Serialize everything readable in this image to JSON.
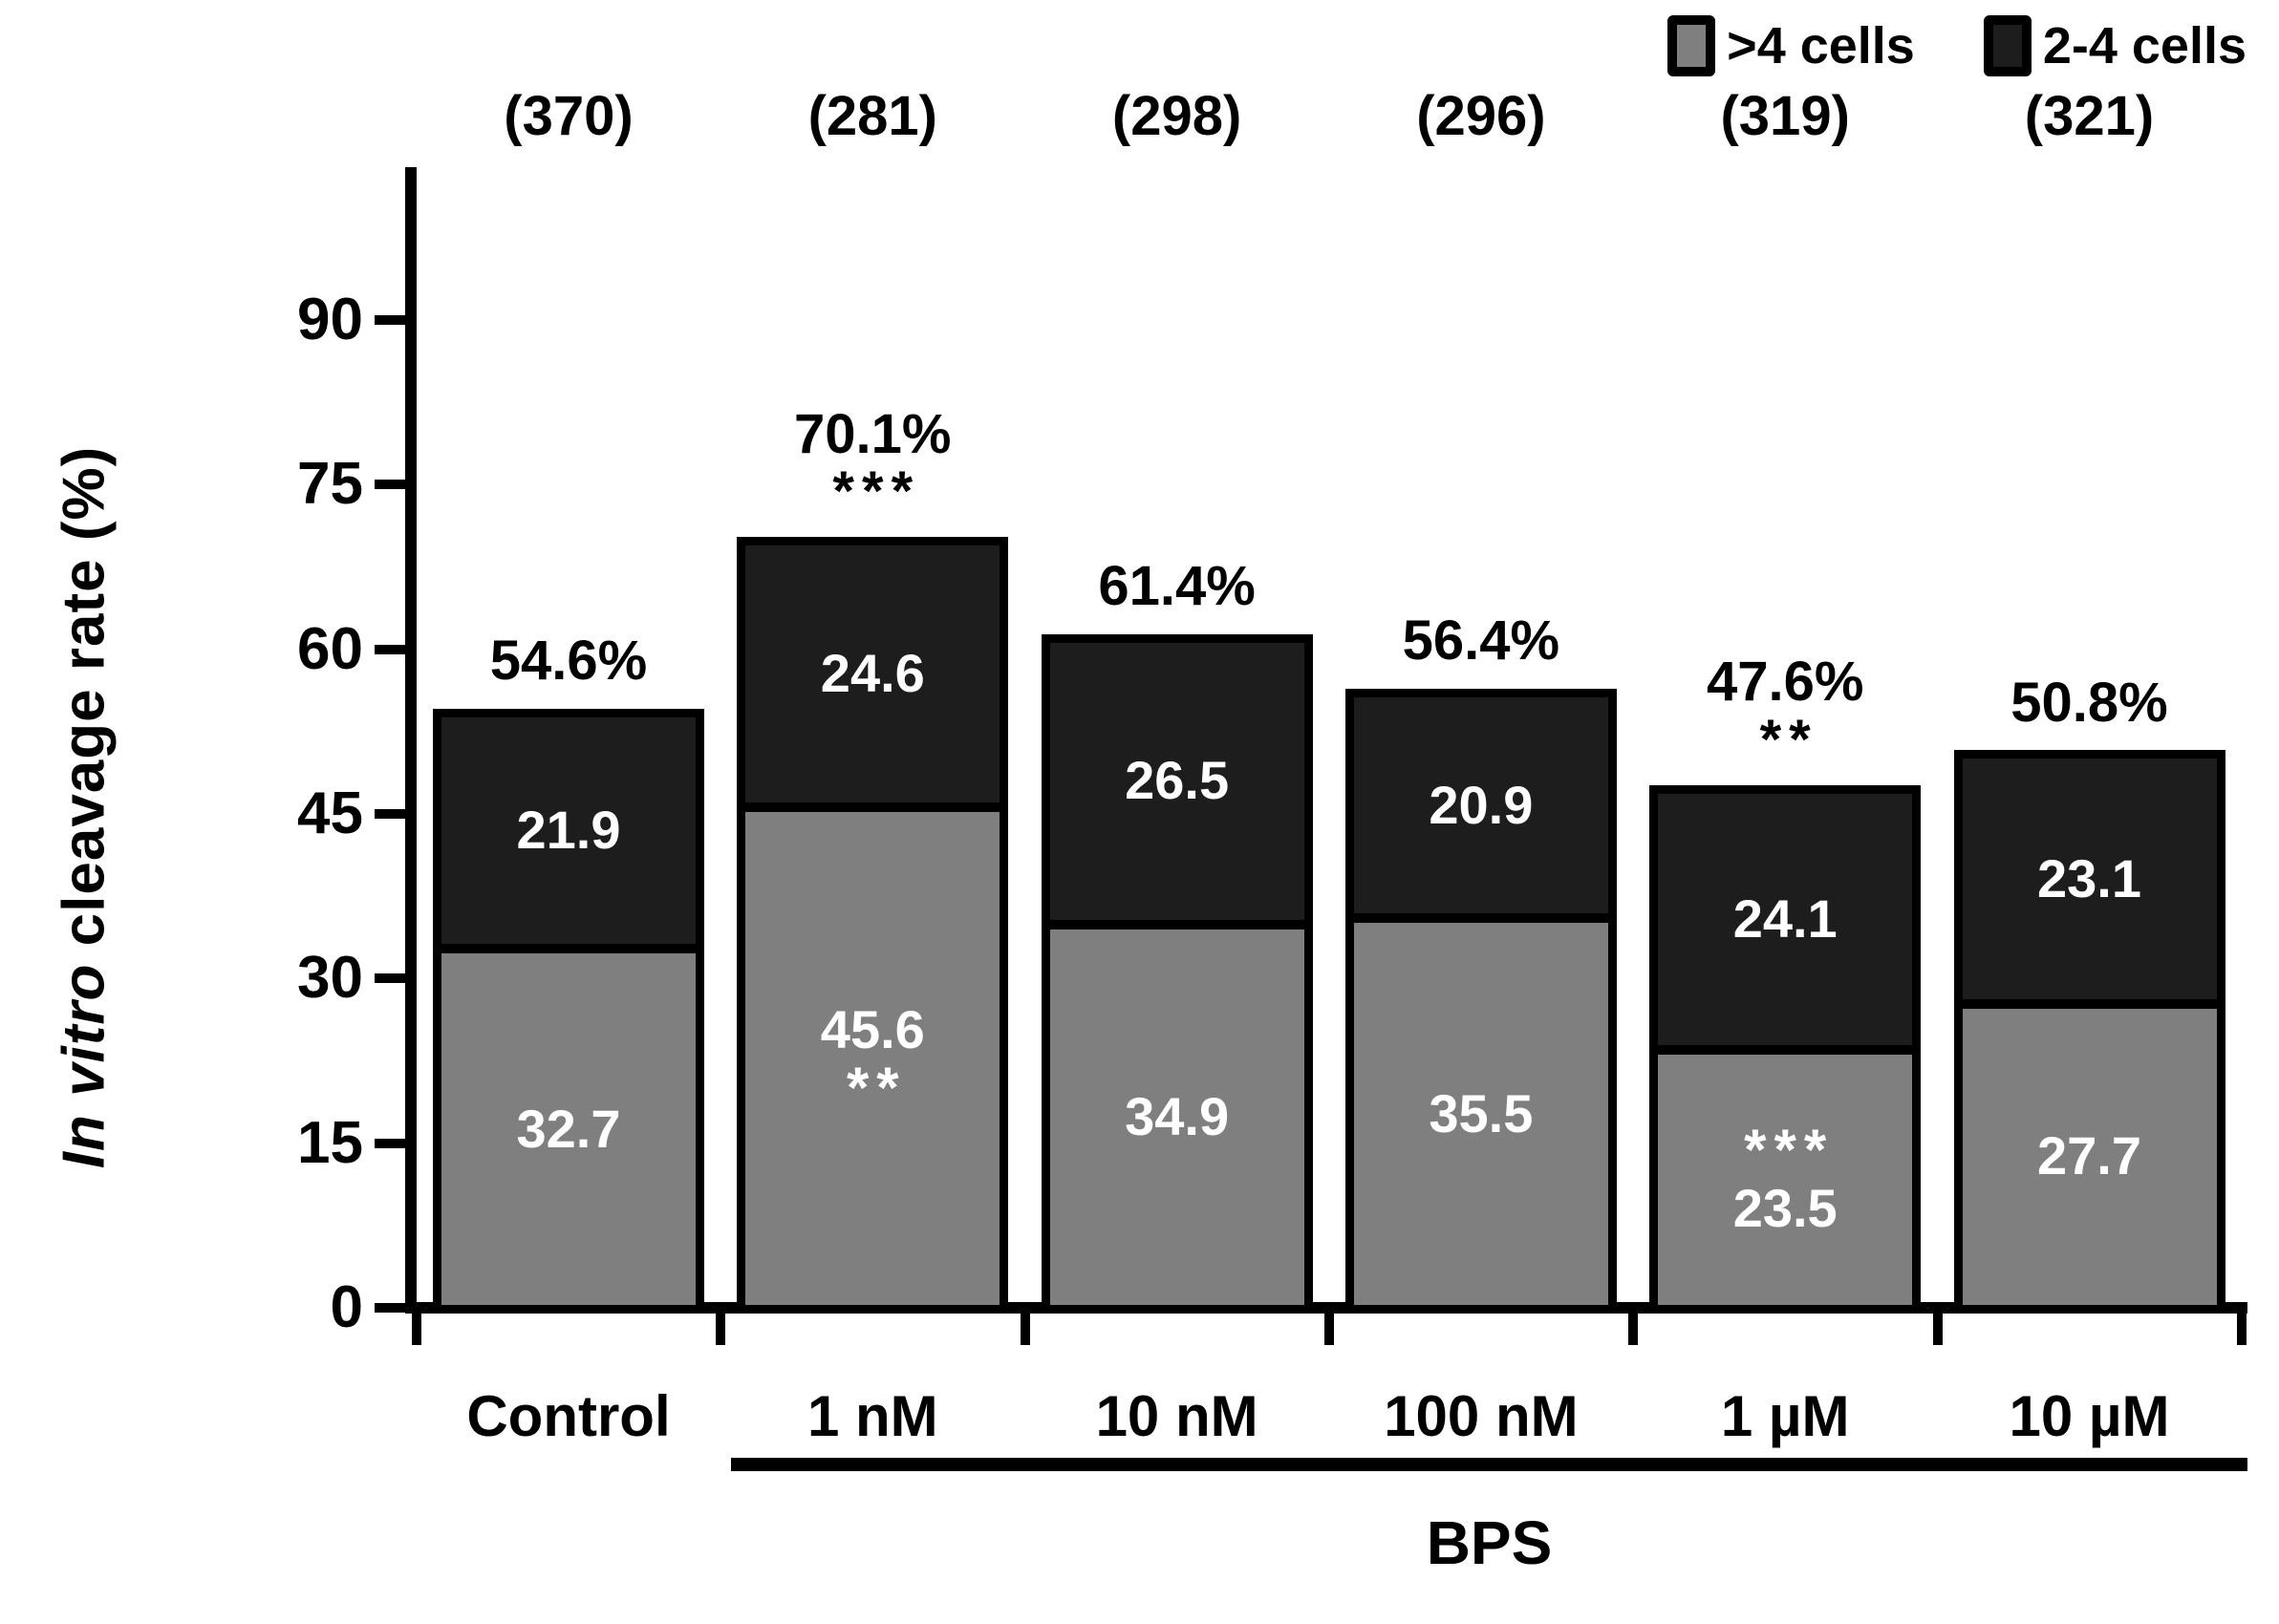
{
  "chart_data": {
    "type": "bar",
    "subtype": "stacked",
    "categories": [
      "Control",
      "1 nM",
      "10 nM",
      "100 nM",
      "1 µM",
      "10 µM"
    ],
    "counts": [
      370,
      281,
      298,
      296,
      319,
      321
    ],
    "series": [
      {
        "name": ">4 cells",
        "color": "#7f7f7f",
        "values": [
          32.7,
          45.6,
          34.9,
          35.5,
          23.5,
          27.7
        ]
      },
      {
        "name": "2-4 cells",
        "color": "#1d1d1d",
        "values": [
          21.9,
          24.6,
          26.5,
          20.9,
          24.1,
          23.1
        ]
      }
    ],
    "totals": [
      54.6,
      70.1,
      61.4,
      56.4,
      47.6,
      50.8
    ],
    "sig_above": [
      "",
      "***",
      "",
      "",
      "**",
      ""
    ],
    "sig_inside_gray": [
      "",
      "**",
      "",
      "",
      "***",
      ""
    ],
    "sig_inside_gray_pos": [
      "",
      "below",
      "",
      "",
      "above",
      ""
    ],
    "ylabel_italic": "In vitro",
    "ylabel_rest": " cleavage rate (%)",
    "yticks": [
      0,
      15,
      30,
      45,
      60,
      75,
      90
    ],
    "ylim": [
      0,
      90
    ],
    "xlabel_group": "BPS",
    "group_span_categories": [
      "1 nM",
      "10 µM"
    ],
    "legend_position": "top-right",
    "grid": false,
    "bar_border_color": "#000000",
    "label_color_inside": "#ffffff",
    "label_color_outside": "#000000"
  }
}
